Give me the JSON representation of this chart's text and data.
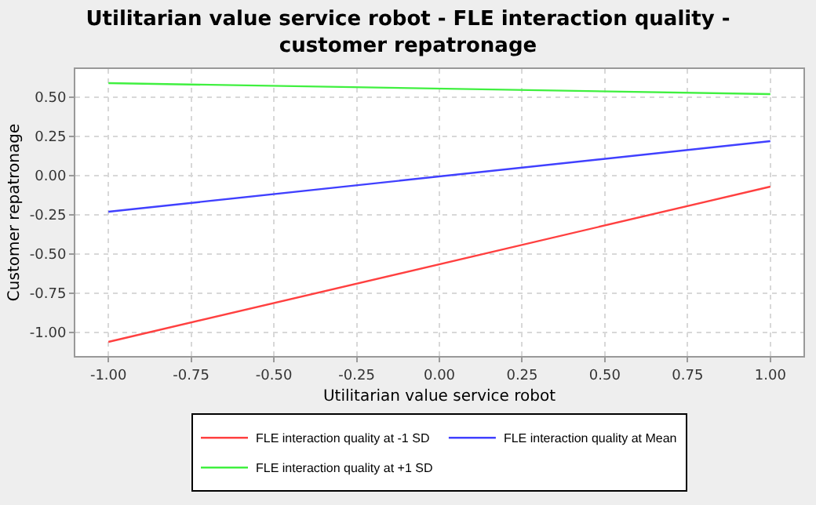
{
  "chart_data": {
    "type": "line",
    "title": "Utilitarian value service robot - FLE interaction quality - customer repatronage",
    "xlabel": "Utilitarian value service robot",
    "ylabel": "Customer repatronage",
    "x": [
      -1,
      1
    ],
    "series": [
      {
        "name": "FLE interaction quality at -1 SD",
        "color": "#ff4040",
        "values": [
          -1.06,
          -0.07
        ]
      },
      {
        "name": "FLE interaction quality at Mean",
        "color": "#4040ff",
        "values": [
          -0.23,
          0.22
        ]
      },
      {
        "name": "FLE interaction quality at +1 SD",
        "color": "#40f040",
        "values": [
          0.59,
          0.52
        ]
      }
    ],
    "xlim": [
      -1.1,
      1.1
    ],
    "xticks": [
      {
        "value": -1,
        "label": "-1.00"
      },
      {
        "value": -0.75,
        "label": "-0.75"
      },
      {
        "value": -0.5,
        "label": "-0.50"
      },
      {
        "value": -0.25,
        "label": "-0.25"
      },
      {
        "value": 0,
        "label": "0.00"
      },
      {
        "value": 0.25,
        "label": "0.25"
      },
      {
        "value": 0.5,
        "label": "0.50"
      },
      {
        "value": 0.75,
        "label": "0.75"
      },
      {
        "value": 1,
        "label": "1.00"
      }
    ],
    "ylim": [
      -1.15,
      0.68
    ],
    "yticks": [
      {
        "value": -1,
        "label": "-1.00"
      },
      {
        "value": -0.75,
        "label": "-0.75"
      },
      {
        "value": -0.5,
        "label": "-0.50"
      },
      {
        "value": -0.25,
        "label": "-0.25"
      },
      {
        "value": 0,
        "label": "0.00"
      },
      {
        "value": 0.25,
        "label": "0.25"
      },
      {
        "value": 0.5,
        "label": "0.50"
      }
    ],
    "grid": true,
    "legend": "bottom",
    "marker": "none",
    "line_style": "solid"
  }
}
